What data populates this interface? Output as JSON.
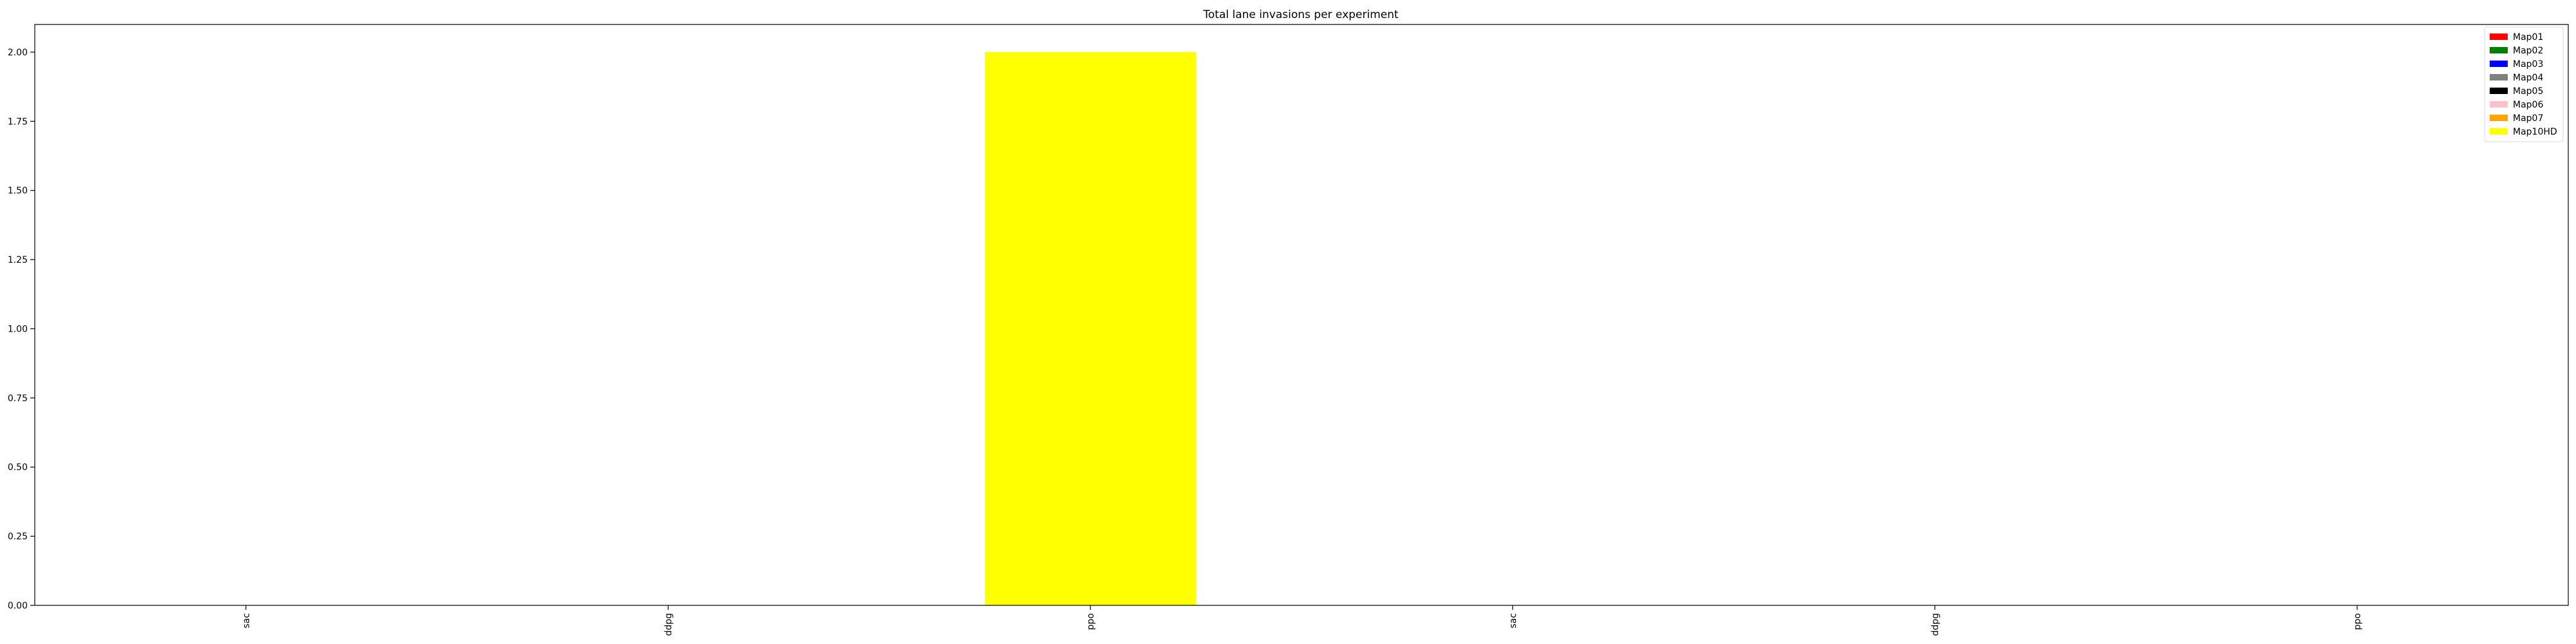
{
  "chart_data": {
    "type": "bar",
    "title": "Total lane invasions per experiment",
    "xlabel": "",
    "ylabel": "",
    "categories": [
      "sac",
      "ddpg",
      "ppo",
      "sac",
      "ddpg",
      "ppo"
    ],
    "ylim": [
      0,
      2.1
    ],
    "yticks": [
      "0.00",
      "0.25",
      "0.50",
      "0.75",
      "1.00",
      "1.25",
      "1.50",
      "1.75",
      "2.00"
    ],
    "grid": false,
    "legend_position": "top-right",
    "series": [
      {
        "name": "Map01",
        "color": "#ff0000",
        "values": [
          0,
          0,
          0,
          0,
          0,
          0
        ]
      },
      {
        "name": "Map02",
        "color": "#008000",
        "values": [
          0,
          0,
          0,
          0,
          0,
          0
        ]
      },
      {
        "name": "Map03",
        "color": "#0000ff",
        "values": [
          0,
          0,
          0,
          0,
          0,
          0
        ]
      },
      {
        "name": "Map04",
        "color": "#808080",
        "values": [
          0,
          0,
          0,
          0,
          0,
          0
        ]
      },
      {
        "name": "Map05",
        "color": "#000000",
        "values": [
          0,
          0,
          0,
          0,
          0,
          0
        ]
      },
      {
        "name": "Map06",
        "color": "#ffc0cb",
        "values": [
          0,
          0,
          0,
          0,
          0,
          0
        ]
      },
      {
        "name": "Map07",
        "color": "#ffa500",
        "values": [
          0,
          0,
          0,
          0,
          0,
          0
        ]
      },
      {
        "name": "Map10HD",
        "color": "#ffff00",
        "values": [
          0,
          0,
          2,
          0,
          0,
          0
        ]
      }
    ]
  }
}
